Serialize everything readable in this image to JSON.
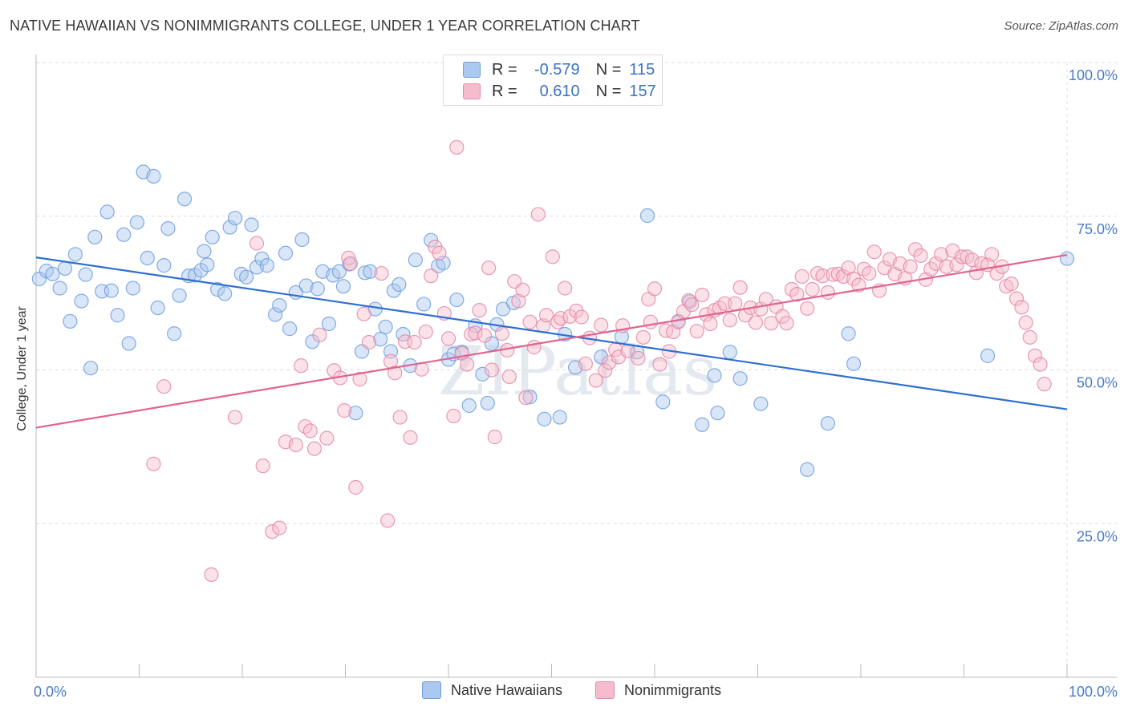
{
  "title": "NATIVE HAWAIIAN VS NONIMMIGRANTS COLLEGE, UNDER 1 YEAR CORRELATION CHART",
  "source": "Source: ZipAtlas.com",
  "watermark": "ZIPatlas",
  "legend_stats": [
    {
      "r_label": "R =",
      "r_value": "-0.579",
      "n_label": "N =",
      "n_value": "115",
      "color": "#aac8f0",
      "border": "#6f9ede"
    },
    {
      "r_label": "R =",
      "r_value": "0.610",
      "n_label": "N =",
      "n_value": "157",
      "color": "#f6bccd",
      "border": "#e38aa6"
    }
  ],
  "chart_data": {
    "type": "scatter",
    "title": "NATIVE HAWAIIAN VS NONIMMIGRANTS COLLEGE, UNDER 1 YEAR CORRELATION CHART",
    "xlabel": "",
    "ylabel": "College, Under 1 year",
    "xlim": [
      0,
      100
    ],
    "ylim": [
      0,
      100
    ],
    "x_tick_labels": [
      "0.0%",
      "100.0%"
    ],
    "y_tick_labels": [
      "25.0%",
      "50.0%",
      "75.0%",
      "100.0%"
    ],
    "y_ticks": [
      25,
      50,
      75,
      100
    ],
    "grid": true,
    "legend": "bottom-center",
    "series": [
      {
        "name": "Native Hawaiians",
        "color": "#6f9ede",
        "fill": "#aac8f0",
        "trend": {
          "x": [
            0,
            100
          ],
          "y": [
            68.3,
            43.6
          ]
        },
        "points": [
          [
            0.3,
            64.8
          ],
          [
            1.0,
            66.1
          ],
          [
            1.6,
            65.6
          ],
          [
            2.3,
            63.3
          ],
          [
            2.8,
            66.5
          ],
          [
            3.3,
            57.9
          ],
          [
            3.8,
            68.8
          ],
          [
            4.4,
            61.2
          ],
          [
            4.8,
            65.5
          ],
          [
            5.3,
            50.3
          ],
          [
            5.7,
            71.6
          ],
          [
            6.4,
            62.8
          ],
          [
            6.9,
            75.7
          ],
          [
            7.3,
            62.9
          ],
          [
            7.9,
            58.9
          ],
          [
            8.5,
            72.0
          ],
          [
            9.0,
            54.3
          ],
          [
            9.4,
            63.3
          ],
          [
            9.8,
            74.0
          ],
          [
            10.4,
            82.2
          ],
          [
            10.8,
            68.2
          ],
          [
            11.4,
            81.5
          ],
          [
            11.8,
            60.1
          ],
          [
            12.4,
            67.0
          ],
          [
            12.8,
            73.0
          ],
          [
            13.4,
            55.9
          ],
          [
            13.9,
            62.1
          ],
          [
            14.4,
            77.8
          ],
          [
            14.8,
            65.3
          ],
          [
            15.4,
            65.4
          ],
          [
            16.0,
            66.2
          ],
          [
            16.3,
            69.3
          ],
          [
            16.6,
            67.1
          ],
          [
            17.1,
            71.6
          ],
          [
            17.6,
            63.1
          ],
          [
            18.3,
            62.4
          ],
          [
            18.8,
            73.2
          ],
          [
            19.3,
            74.7
          ],
          [
            19.9,
            65.6
          ],
          [
            20.4,
            65.1
          ],
          [
            20.9,
            73.6
          ],
          [
            21.4,
            66.7
          ],
          [
            21.9,
            68.1
          ],
          [
            22.4,
            67.0
          ],
          [
            23.2,
            59.0
          ],
          [
            23.6,
            60.5
          ],
          [
            24.2,
            69.0
          ],
          [
            24.6,
            56.7
          ],
          [
            25.2,
            62.6
          ],
          [
            25.8,
            71.2
          ],
          [
            26.2,
            63.7
          ],
          [
            26.8,
            54.6
          ],
          [
            27.3,
            63.2
          ],
          [
            27.8,
            66.0
          ],
          [
            28.4,
            57.5
          ],
          [
            28.8,
            65.4
          ],
          [
            29.4,
            66.0
          ],
          [
            29.8,
            63.6
          ],
          [
            30.4,
            67.2
          ],
          [
            31.0,
            43.0
          ],
          [
            31.6,
            53.0
          ],
          [
            31.9,
            65.8
          ],
          [
            32.4,
            66.0
          ],
          [
            32.9,
            59.9
          ],
          [
            33.4,
            55.0
          ],
          [
            33.9,
            57.0
          ],
          [
            34.4,
            53.0
          ],
          [
            34.7,
            62.9
          ],
          [
            35.2,
            63.9
          ],
          [
            35.6,
            55.8
          ],
          [
            36.3,
            50.7
          ],
          [
            36.8,
            67.9
          ],
          [
            37.6,
            60.7
          ],
          [
            38.3,
            71.1
          ],
          [
            39.0,
            66.9
          ],
          [
            39.5,
            67.4
          ],
          [
            40.0,
            51.7
          ],
          [
            40.5,
            52.6
          ],
          [
            40.8,
            61.4
          ],
          [
            41.3,
            52.9
          ],
          [
            42.0,
            44.2
          ],
          [
            42.6,
            57.2
          ],
          [
            43.3,
            49.3
          ],
          [
            43.8,
            44.6
          ],
          [
            44.2,
            54.3
          ],
          [
            44.7,
            57.4
          ],
          [
            45.3,
            59.9
          ],
          [
            46.3,
            60.9
          ],
          [
            47.9,
            45.6
          ],
          [
            49.3,
            42.0
          ],
          [
            50.8,
            42.3
          ],
          [
            51.3,
            55.8
          ],
          [
            52.3,
            50.4
          ],
          [
            54.8,
            52.1
          ],
          [
            56.8,
            55.4
          ],
          [
            58.3,
            52.9
          ],
          [
            59.3,
            75.1
          ],
          [
            60.8,
            44.8
          ],
          [
            62.3,
            57.9
          ],
          [
            63.4,
            61.1
          ],
          [
            64.6,
            41.1
          ],
          [
            65.8,
            49.1
          ],
          [
            66.1,
            43.0
          ],
          [
            67.3,
            52.9
          ],
          [
            68.3,
            48.6
          ],
          [
            70.3,
            44.5
          ],
          [
            74.8,
            33.8
          ],
          [
            76.8,
            41.3
          ],
          [
            78.8,
            55.9
          ],
          [
            79.3,
            51.0
          ],
          [
            92.3,
            52.3
          ],
          [
            100.0,
            68.1
          ]
        ]
      },
      {
        "name": "Nonimmigrants",
        "color": "#e38aa6",
        "fill": "#f6bccd",
        "trend": {
          "x": [
            0,
            100
          ],
          "y": [
            40.6,
            68.7
          ]
        },
        "points": [
          [
            11.4,
            34.7
          ],
          [
            12.4,
            47.3
          ],
          [
            17.0,
            16.7
          ],
          [
            19.3,
            42.3
          ],
          [
            21.4,
            70.6
          ],
          [
            22.0,
            34.4
          ],
          [
            22.9,
            23.7
          ],
          [
            23.6,
            24.3
          ],
          [
            24.2,
            38.3
          ],
          [
            25.2,
            37.8
          ],
          [
            25.7,
            50.7
          ],
          [
            26.1,
            40.8
          ],
          [
            26.6,
            40.1
          ],
          [
            27.0,
            37.2
          ],
          [
            27.5,
            55.7
          ],
          [
            28.2,
            38.9
          ],
          [
            28.9,
            49.9
          ],
          [
            29.5,
            48.7
          ],
          [
            29.9,
            43.4
          ],
          [
            30.3,
            68.2
          ],
          [
            30.5,
            67.3
          ],
          [
            31.0,
            30.9
          ],
          [
            31.4,
            48.5
          ],
          [
            31.8,
            59.1
          ],
          [
            32.3,
            54.5
          ],
          [
            33.5,
            65.7
          ],
          [
            34.1,
            25.5
          ],
          [
            34.4,
            51.4
          ],
          [
            34.8,
            49.5
          ],
          [
            35.3,
            42.3
          ],
          [
            35.8,
            54.6
          ],
          [
            36.3,
            39.0
          ],
          [
            36.7,
            54.5
          ],
          [
            37.4,
            50.1
          ],
          [
            37.8,
            56.2
          ],
          [
            38.3,
            65.3
          ],
          [
            38.7,
            70.0
          ],
          [
            39.1,
            69.0
          ],
          [
            39.6,
            59.2
          ],
          [
            40.0,
            55.1
          ],
          [
            40.5,
            42.5
          ],
          [
            40.8,
            86.2
          ],
          [
            41.3,
            52.7
          ],
          [
            41.8,
            50.9
          ],
          [
            42.2,
            55.8
          ],
          [
            42.6,
            56.0
          ],
          [
            43.0,
            59.7
          ],
          [
            43.5,
            55.6
          ],
          [
            43.9,
            66.6
          ],
          [
            44.2,
            50.0
          ],
          [
            44.5,
            39.1
          ],
          [
            45.2,
            55.9
          ],
          [
            45.7,
            53.2
          ],
          [
            45.9,
            48.9
          ],
          [
            46.4,
            64.4
          ],
          [
            46.8,
            61.2
          ],
          [
            47.2,
            63.0
          ],
          [
            47.5,
            45.5
          ],
          [
            47.9,
            57.8
          ],
          [
            48.3,
            53.7
          ],
          [
            48.7,
            75.3
          ],
          [
            49.2,
            57.2
          ],
          [
            49.5,
            58.9
          ],
          [
            50.1,
            68.4
          ],
          [
            50.6,
            57.8
          ],
          [
            50.9,
            58.4
          ],
          [
            51.3,
            63.3
          ],
          [
            51.8,
            58.7
          ],
          [
            52.4,
            59.6
          ],
          [
            52.9,
            58.6
          ],
          [
            53.3,
            51.0
          ],
          [
            53.7,
            55.2
          ],
          [
            54.3,
            48.3
          ],
          [
            54.8,
            57.3
          ],
          [
            55.2,
            49.9
          ],
          [
            55.6,
            51.2
          ],
          [
            56.2,
            53.3
          ],
          [
            56.5,
            52.1
          ],
          [
            56.9,
            57.2
          ],
          [
            57.4,
            53.1
          ],
          [
            58.4,
            51.9
          ],
          [
            58.9,
            55.3
          ],
          [
            59.4,
            61.5
          ],
          [
            59.6,
            57.8
          ],
          [
            60.0,
            63.2
          ],
          [
            60.5,
            50.9
          ],
          [
            61.1,
            56.4
          ],
          [
            61.4,
            53.0
          ],
          [
            61.8,
            56.2
          ],
          [
            62.3,
            57.8
          ],
          [
            62.8,
            59.5
          ],
          [
            63.3,
            61.3
          ],
          [
            63.6,
            60.6
          ],
          [
            64.1,
            56.3
          ],
          [
            64.6,
            62.2
          ],
          [
            65.0,
            59.0
          ],
          [
            65.4,
            57.5
          ],
          [
            65.8,
            59.7
          ],
          [
            66.3,
            60.1
          ],
          [
            66.8,
            60.8
          ],
          [
            67.3,
            58.1
          ],
          [
            67.8,
            60.8
          ],
          [
            68.3,
            63.4
          ],
          [
            68.8,
            58.9
          ],
          [
            69.3,
            60.1
          ],
          [
            69.8,
            57.7
          ],
          [
            70.3,
            59.9
          ],
          [
            70.8,
            61.5
          ],
          [
            71.3,
            57.6
          ],
          [
            71.8,
            60.3
          ],
          [
            72.4,
            58.7
          ],
          [
            72.8,
            57.6
          ],
          [
            73.3,
            63.1
          ],
          [
            73.8,
            62.3
          ],
          [
            74.3,
            65.2
          ],
          [
            74.8,
            60.0
          ],
          [
            75.3,
            63.1
          ],
          [
            75.8,
            65.7
          ],
          [
            76.3,
            65.3
          ],
          [
            76.8,
            62.6
          ],
          [
            77.3,
            65.5
          ],
          [
            77.8,
            65.6
          ],
          [
            78.3,
            65.2
          ],
          [
            78.8,
            66.6
          ],
          [
            79.3,
            64.8
          ],
          [
            79.8,
            63.8
          ],
          [
            80.3,
            66.4
          ],
          [
            80.8,
            65.7
          ],
          [
            81.3,
            69.2
          ],
          [
            81.8,
            62.9
          ],
          [
            82.3,
            66.6
          ],
          [
            82.8,
            68.0
          ],
          [
            83.3,
            65.6
          ],
          [
            83.8,
            67.3
          ],
          [
            84.3,
            64.9
          ],
          [
            84.8,
            66.8
          ],
          [
            85.3,
            69.6
          ],
          [
            85.8,
            68.6
          ],
          [
            86.3,
            64.7
          ],
          [
            86.8,
            66.4
          ],
          [
            87.3,
            67.3
          ],
          [
            87.8,
            68.8
          ],
          [
            88.3,
            66.8
          ],
          [
            88.9,
            69.4
          ],
          [
            89.3,
            67.1
          ],
          [
            89.8,
            68.4
          ],
          [
            90.3,
            68.4
          ],
          [
            90.8,
            67.9
          ],
          [
            91.2,
            65.8
          ],
          [
            91.7,
            67.3
          ],
          [
            92.3,
            67.1
          ],
          [
            92.7,
            68.8
          ],
          [
            93.2,
            65.7
          ],
          [
            93.7,
            66.8
          ],
          [
            94.1,
            63.6
          ],
          [
            94.6,
            64.0
          ],
          [
            95.1,
            61.6
          ],
          [
            95.6,
            60.2
          ],
          [
            96.0,
            57.7
          ],
          [
            96.4,
            55.3
          ],
          [
            96.9,
            52.3
          ],
          [
            97.4,
            50.9
          ],
          [
            97.8,
            47.7
          ]
        ]
      }
    ]
  }
}
